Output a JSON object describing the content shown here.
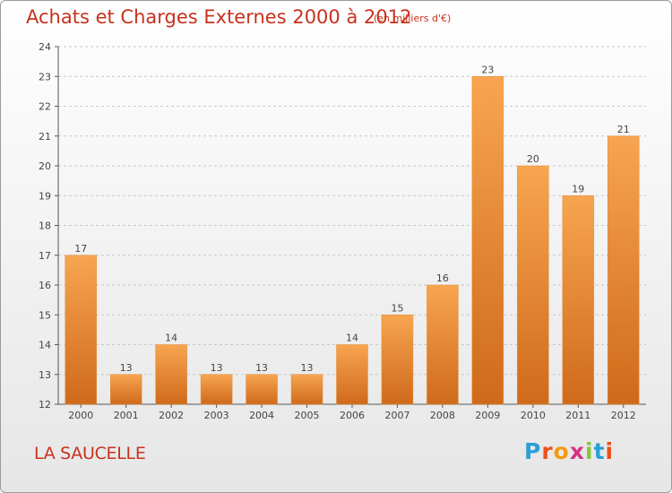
{
  "title": "Achats et Charges Externes 2000 à 2012",
  "subtitle": "(en milliers d'€)",
  "place_name": "LA SAUCELLE",
  "logo_text": "Proxiti",
  "colors": {
    "title": "#c8311e",
    "bar_light": "#f7a550",
    "bar_dark": "#cf6a1b",
    "grid": "#c8c8c8"
  },
  "chart_data": {
    "type": "bar",
    "title": "Achats et Charges Externes 2000 à 2012",
    "subtitle": "(en milliers d'€)",
    "categories": [
      "2000",
      "2001",
      "2002",
      "2003",
      "2004",
      "2005",
      "2006",
      "2007",
      "2008",
      "2009",
      "2010",
      "2011",
      "2012"
    ],
    "values": [
      17,
      13,
      14,
      13,
      13,
      13,
      14,
      15,
      16,
      23,
      20,
      19,
      21
    ],
    "ylim": [
      12,
      24
    ],
    "yticks": [
      12,
      13,
      14,
      15,
      16,
      17,
      18,
      19,
      20,
      21,
      22,
      23,
      24
    ],
    "grid": true,
    "grid_style": "dashed",
    "data_labels": true
  }
}
